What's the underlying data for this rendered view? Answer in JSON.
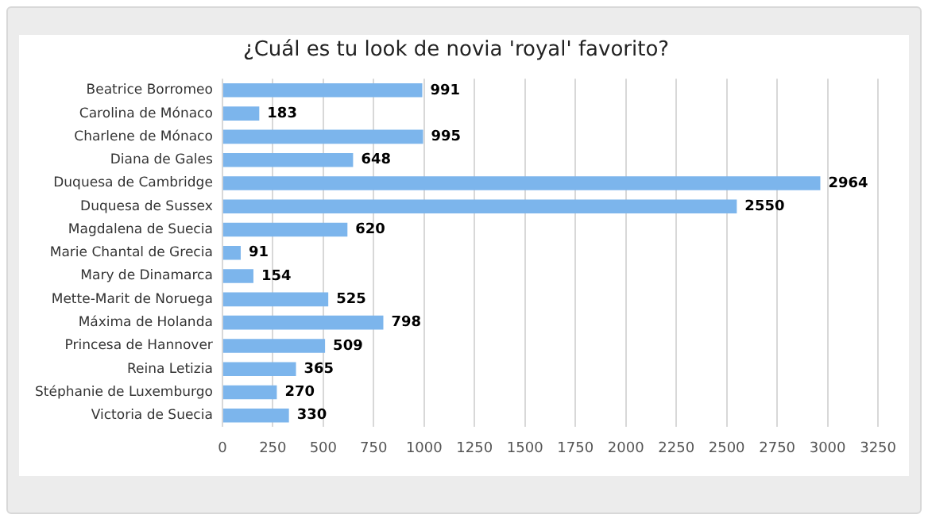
{
  "chart_data": {
    "type": "bar",
    "orientation": "horizontal",
    "title": "¿Cuál es tu look de novia 'royal' favorito?",
    "categories": [
      "Beatrice Borromeo",
      "Carolina de Mónaco",
      "Charlene de Mónaco",
      "Diana de Gales",
      "Duquesa de Cambridge",
      "Duquesa de Sussex",
      "Magdalena de Suecia",
      "Marie Chantal de Grecia",
      "Mary de Dinamarca",
      "Mette-Marit de Noruega",
      "Máxima de Holanda",
      "Princesa de Hannover",
      "Reina Letizia",
      "Stéphanie de Luxemburgo",
      "Victoria de Suecia"
    ],
    "values": [
      991,
      183,
      995,
      648,
      2964,
      2550,
      620,
      91,
      154,
      525,
      798,
      509,
      365,
      270,
      330
    ],
    "color": "#7cb5ec",
    "xlim": [
      0,
      3250
    ],
    "xticks": [
      0,
      250,
      500,
      750,
      1000,
      1250,
      1500,
      1750,
      2000,
      2250,
      2500,
      2750,
      3000,
      3250
    ],
    "grid": "x",
    "data_labels": true,
    "legend": false
  }
}
